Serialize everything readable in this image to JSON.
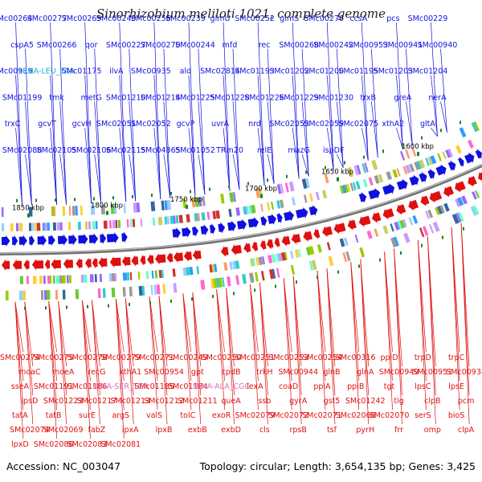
{
  "title": "Sinorhizobium meliloti 1021, complete genome",
  "footer": {
    "accession": "Accession: NC_003047",
    "summary": "Topology: circular; Length: 3,654,135 bp; Genes: 3,425"
  },
  "colors": {
    "forward_strand": "#1010e0",
    "reverse_strand": "#e01010",
    "trna_label": "#20b0d0",
    "rna_label_reverse": "#e070b0",
    "backbone": "#707070",
    "tick": "#208020"
  },
  "scale_labels": [
    "1600 kbp",
    "1650 kbp",
    "1700 kbp",
    "1750 kbp",
    "1800 kbp",
    "1850 kbp"
  ],
  "top_labels": [
    "SMc00264",
    "SMc00277",
    "SMc00269",
    "SMc00240",
    "SMc00256",
    "SMc00239",
    "glmU",
    "SMc00252",
    "glmS",
    "SMc00276",
    "ccsA",
    "pcs",
    "SMc00229",
    "cspA5",
    "SMc00266",
    "qor",
    "SMc00227",
    "SMc00270",
    "SMc00244",
    "mfd",
    "rec",
    "SMc00268",
    "SMc00242",
    "SMc00953",
    "SMc00941",
    "SMc00940",
    "SMc00939",
    "tRNA-LEU_TAA",
    "SMc01175",
    "ilvA",
    "SMc00935",
    "ald",
    "SMc02814",
    "SMc01193",
    "SMc01202",
    "SMc01200",
    "SMc01195",
    "SMc01203",
    "SMc01204",
    "SMc01199",
    "tmk",
    "metG",
    "SMc01210",
    "SMc01214",
    "SMc01225",
    "SMc01228",
    "SMc01226",
    "SMc01229",
    "SMc01230",
    "trxB",
    "greA",
    "nerA",
    "trxC",
    "gcvT",
    "gcvH",
    "SMc02051",
    "SMc02052",
    "gcvP",
    "uvrA",
    "nrd",
    "SMc02053",
    "SMc02059",
    "SMc02075",
    "xthA2",
    "gltA",
    "SMc02088",
    "SMc02105",
    "SMc02106",
    "SMc02115",
    "SMc04865",
    "SMc01052",
    "TRm20",
    "relE",
    "mazG",
    "ispDF"
  ],
  "bottom_labels": [
    "SMc00274",
    "SMc00275",
    "SMc00278",
    "SMc00279",
    "SMc00271",
    "SMc00249",
    "SMc00250",
    "SMc00251",
    "SMc00253",
    "SMc00254",
    "SMc00316",
    "ppiD",
    "trpD",
    "trpC",
    "moaC",
    "moeA",
    "recG",
    "xthA1",
    "SMc00954",
    "gpt",
    "cpdB",
    "trkH",
    "SMc00944",
    "glnB",
    "glnA",
    "SMc00949",
    "SMc00951",
    "SMc00938",
    "sseA",
    "SMc01191",
    "SMc01186",
    "tRNA-SER_TGA",
    "SMc01185",
    "SMc01184",
    "tRNA-ALA_CGC",
    "lexA",
    "coaD",
    "ppiA",
    "ppiB",
    "tgt",
    "lpsC",
    "lpsE",
    "lpsD",
    "SMc01223",
    "SMc01217",
    "SMc01213",
    "SMc01212",
    "SMc01211",
    "queA",
    "ssb",
    "gyrA",
    "gst5",
    "SMc01242",
    "tig",
    "clpB",
    "pcm",
    "tatA",
    "tatB",
    "surE",
    "argS",
    "valS",
    "tolC",
    "exoR",
    "SMc02079",
    "SMc02072",
    "SMc02071",
    "SMc02068",
    "SMc02070",
    "serS",
    "bioS",
    "SMc02074",
    "SMc02069",
    "fabZ",
    "lpxA",
    "lpxB",
    "exbB",
    "exbD",
    "cls",
    "rpsB",
    "tsf",
    "pyrH",
    "frr",
    "omp",
    "clpA",
    "lpxD",
    "SMc02086",
    "SMc02083",
    "SMc02081"
  ]
}
